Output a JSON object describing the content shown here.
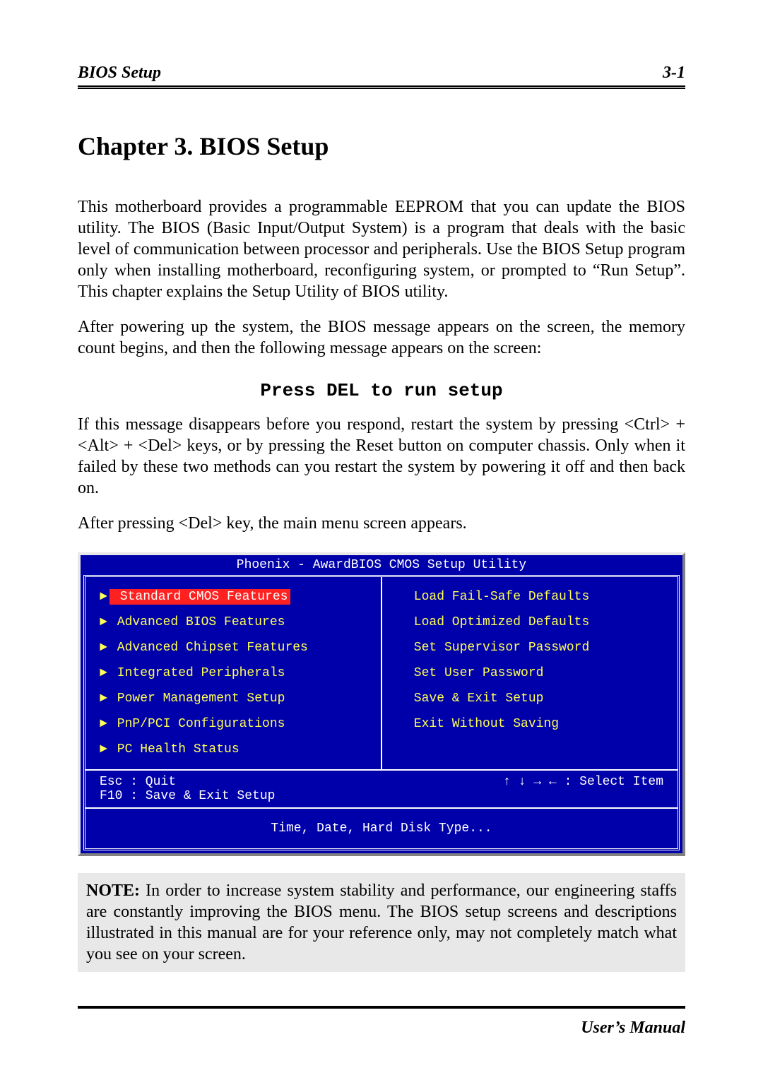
{
  "header": {
    "left": "BIOS Setup",
    "right": "3-1"
  },
  "chapter_title": "Chapter 3.    BIOS Setup",
  "paragraphs": {
    "p1": "This motherboard provides a programmable EEPROM that you can update the BIOS utility. The BIOS (Basic Input/Output System) is a program that deals with the basic level of communication between processor and peripherals. Use the BIOS Setup program only when installing motherboard, reconfiguring system, or prompted to “Run Setup”. This chapter explains the Setup Utility of BIOS utility.",
    "p2": "After powering up the system, the BIOS message appears on the screen, the memory count begins, and then the following message appears on the screen:",
    "mono": "Press DEL to run setup",
    "p3": "If this message disappears before you respond, restart the system by pressing <Ctrl> + <Alt> + <Del> keys, or by pressing the Reset button on computer chassis. Only when it failed by these two methods can you restart the system by powering it off and then back on.",
    "p4": "After pressing <Del> key, the main menu screen appears."
  },
  "bios": {
    "title": "Phoenix - AwardBIOS CMOS Setup Utility",
    "background_color": "#0000aa",
    "menu_text_color": "#ffff55",
    "frame_color": "#ffffff",
    "selected_bg": "#ff2020",
    "selected_fg": "#ffffff",
    "arrow_glyph": "►",
    "left_items": [
      {
        "label": "Standard CMOS Features",
        "arrow": true,
        "selected": true
      },
      {
        "label": "Advanced BIOS Features",
        "arrow": true,
        "selected": false
      },
      {
        "label": "Advanced Chipset Features",
        "arrow": true,
        "selected": false
      },
      {
        "label": "Integrated Peripherals",
        "arrow": true,
        "selected": false
      },
      {
        "label": "Power Management Setup",
        "arrow": true,
        "selected": false
      },
      {
        "label": "PnP/PCI Configurations",
        "arrow": true,
        "selected": false
      },
      {
        "label": "PC Health Status",
        "arrow": true,
        "selected": false
      }
    ],
    "right_items": [
      {
        "label": "Load Fail-Safe Defaults",
        "arrow": false,
        "selected": false
      },
      {
        "label": "Load Optimized Defaults",
        "arrow": false,
        "selected": false
      },
      {
        "label": "Set Supervisor Password",
        "arrow": false,
        "selected": false
      },
      {
        "label": "Set User Password",
        "arrow": false,
        "selected": false
      },
      {
        "label": "Save & Exit Setup",
        "arrow": false,
        "selected": false
      },
      {
        "label": "Exit Without Saving",
        "arrow": false,
        "selected": false
      }
    ],
    "keys": {
      "left": "Esc : Quit\nF10 : Save & Exit Setup",
      "right": "↑ ↓ → ←   : Select Item"
    },
    "help": "Time, Date, Hard Disk Type..."
  },
  "note": {
    "label": "NOTE:",
    "text": " In order to increase system stability and performance, our engineering staffs are constantly improving the BIOS menu. The BIOS setup screens and descriptions illustrated in this manual are for your reference only, may not completely match what you see on your screen."
  },
  "footer": "User’s Manual"
}
